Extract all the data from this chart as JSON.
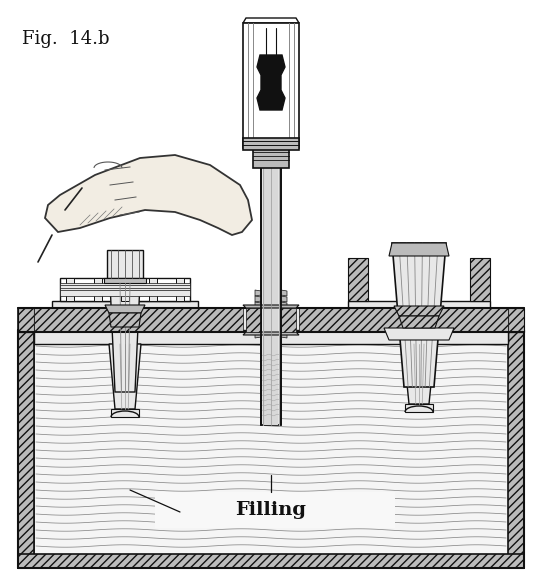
{
  "title": "Fig.  14.b",
  "label": "Filling",
  "bg_color": "#ffffff",
  "title_fontsize": 13,
  "label_fontsize": 14,
  "fig_width": 5.42,
  "fig_height": 5.76,
  "dpi": 100,
  "lc": "#111111",
  "lc2": "#333333",
  "white": "#ffffff",
  "light_gray": "#e8e8e8",
  "mid_gray": "#bbbbbb",
  "dark_gray": "#777777",
  "black": "#111111"
}
